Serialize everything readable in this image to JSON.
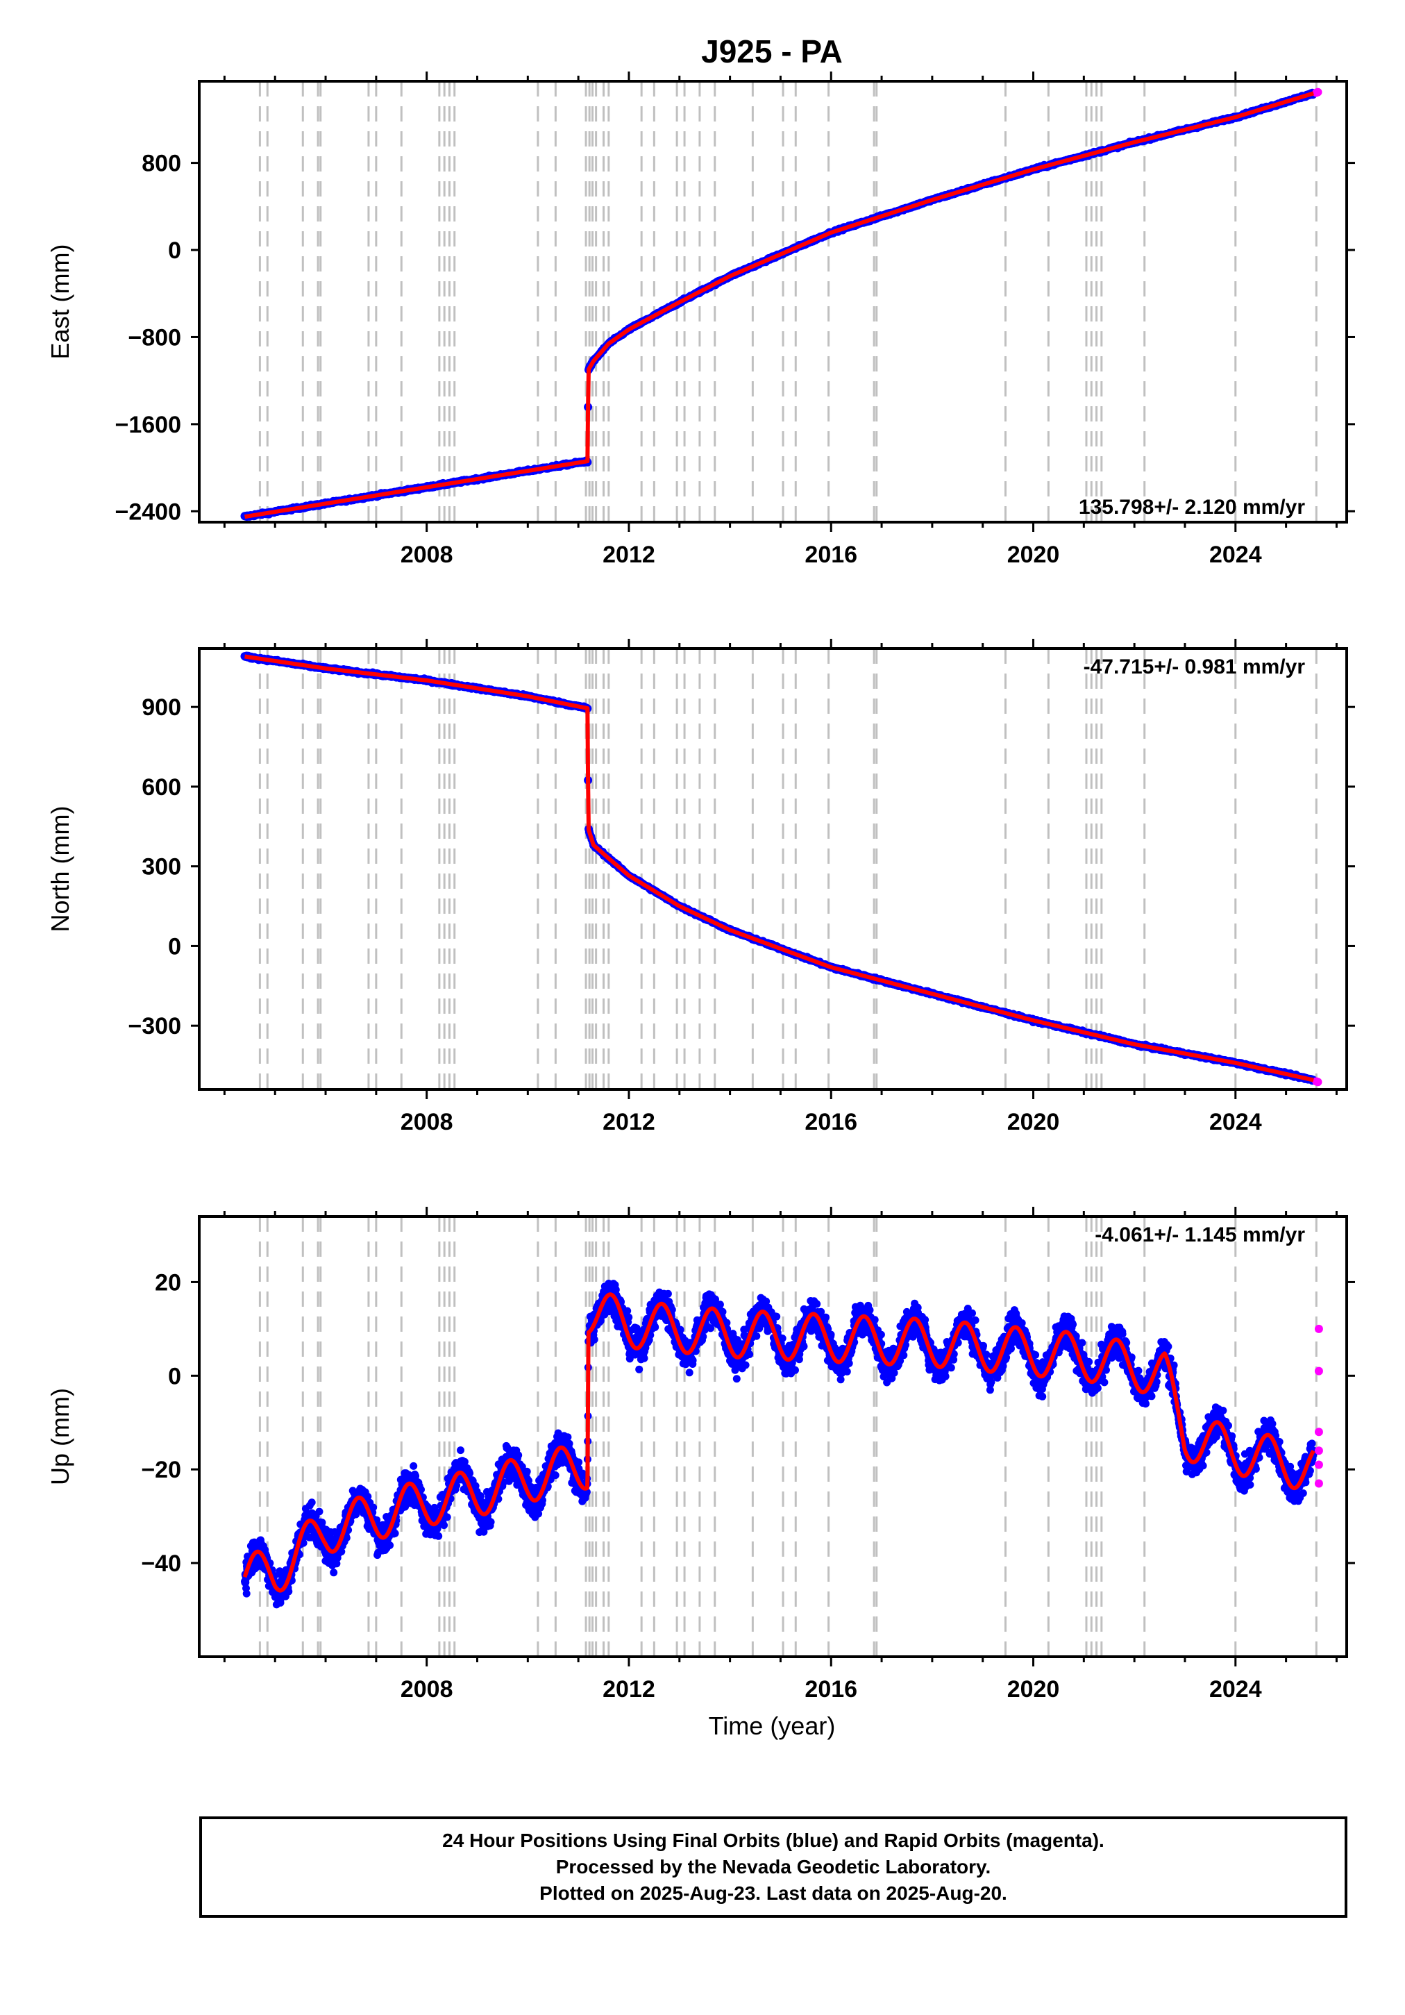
{
  "title": "J925 - PA",
  "xlabel": "Time (year)",
  "footer": {
    "line1": "24 Hour Positions Using Final Orbits (blue) and Rapid Orbits (magenta).",
    "line2": "Processed by the Nevada Geodetic Laboratory.",
    "line3": "Plotted on 2025-Aug-23. Last data on 2025-Aug-20."
  },
  "colors": {
    "final_orbits": "#0000ff",
    "rapid_orbits": "#ff00ff",
    "model": "#ff0000",
    "event_lines": "#c0c0c0"
  },
  "chart_data": [
    {
      "type": "scatter",
      "component": "east",
      "ylabel": "East (mm)",
      "xlim": [
        2003.5,
        2026.2
      ],
      "ylim": [
        -2500,
        1550
      ],
      "yticks": [
        -2400,
        -1600,
        -800,
        0,
        800
      ],
      "xticks": [
        2008,
        2012,
        2016,
        2020,
        2024
      ],
      "rate_label": "135.798+/- 2.120 mm/yr",
      "rate_position": "bottom-right",
      "final_anchors": [
        [
          2004.4,
          -2450
        ],
        [
          2011.18,
          -1940
        ],
        [
          2011.2,
          -1100
        ],
        [
          2011.3,
          -1020
        ],
        [
          2011.6,
          -860
        ],
        [
          2012,
          -730
        ],
        [
          2013,
          -480
        ],
        [
          2014,
          -240
        ],
        [
          2015,
          -40
        ],
        [
          2016,
          160
        ],
        [
          2018,
          460
        ],
        [
          2020,
          740
        ],
        [
          2022,
          990
        ],
        [
          2024,
          1220
        ],
        [
          2025.55,
          1440
        ]
      ],
      "rapid_anchors": [
        [
          2025.6,
          1445
        ],
        [
          2025.63,
          1450
        ]
      ]
    },
    {
      "type": "scatter",
      "component": "north",
      "ylabel": "North (mm)",
      "xlim": [
        2003.5,
        2026.2
      ],
      "ylim": [
        -540,
        1120
      ],
      "yticks": [
        -300,
        0,
        300,
        600,
        900
      ],
      "xticks": [
        2008,
        2012,
        2016,
        2020,
        2024
      ],
      "rate_label": "-47.715+/- 0.981 mm/yr",
      "rate_position": "top-right",
      "final_anchors": [
        [
          2004.4,
          1090
        ],
        [
          2006,
          1045
        ],
        [
          2008,
          1000
        ],
        [
          2010,
          940
        ],
        [
          2011.18,
          895
        ],
        [
          2011.2,
          440
        ],
        [
          2011.3,
          380
        ],
        [
          2011.6,
          330
        ],
        [
          2012,
          265
        ],
        [
          2013,
          150
        ],
        [
          2014,
          60
        ],
        [
          2016,
          -80
        ],
        [
          2018,
          -180
        ],
        [
          2020,
          -280
        ],
        [
          2022,
          -370
        ],
        [
          2024,
          -440
        ],
        [
          2025.55,
          -505
        ]
      ],
      "rapid_anchors": [
        [
          2025.6,
          -510
        ],
        [
          2025.63,
          -512
        ]
      ]
    },
    {
      "type": "scatter",
      "component": "up",
      "ylabel": "Up (mm)",
      "xlim": [
        2003.5,
        2026.2
      ],
      "ylim": [
        -60,
        34
      ],
      "yticks": [
        -40,
        -20,
        0,
        20
      ],
      "xticks": [
        2008,
        2012,
        2016,
        2020,
        2024
      ],
      "rate_label": "-4.061+/- 1.145 mm/yr",
      "rate_position": "top-right",
      "seasonal_amplitude_mm": 5,
      "scatter_mm": 3.5,
      "final_anchors": [
        [
          2004.4,
          -43
        ],
        [
          2005,
          -42
        ],
        [
          2006,
          -33
        ],
        [
          2007,
          -30
        ],
        [
          2008,
          -27
        ],
        [
          2009,
          -25
        ],
        [
          2010,
          -22
        ],
        [
          2011.18,
          -19
        ],
        [
          2011.2,
          14
        ],
        [
          2012,
          11
        ],
        [
          2014,
          9
        ],
        [
          2016,
          8
        ],
        [
          2018,
          7
        ],
        [
          2019,
          6
        ],
        [
          2020,
          5
        ],
        [
          2021,
          4
        ],
        [
          2022,
          2
        ],
        [
          2022.6,
          0
        ],
        [
          2023,
          -13
        ],
        [
          2024,
          -16
        ],
        [
          2025.55,
          -20
        ]
      ],
      "rapid_points": [
        [
          2025.65,
          10
        ],
        [
          2025.65,
          1
        ],
        [
          2025.65,
          -12
        ],
        [
          2025.65,
          -16
        ],
        [
          2025.65,
          -19
        ],
        [
          2025.65,
          -23
        ]
      ]
    }
  ],
  "event_years": [
    2004.7,
    2004.85,
    2005.55,
    2005.85,
    2005.9,
    2006.85,
    2007.0,
    2007.5,
    2008.25,
    2008.35,
    2008.45,
    2008.55,
    2010.2,
    2010.55,
    2011.15,
    2011.22,
    2011.28,
    2011.35,
    2011.5,
    2011.6,
    2012.25,
    2012.5,
    2012.95,
    2013.1,
    2013.4,
    2013.7,
    2014.45,
    2015.05,
    2015.3,
    2015.95,
    2016.85,
    2016.9,
    2019.45,
    2020.3,
    2021.05,
    2021.15,
    2021.25,
    2021.35,
    2022.2,
    2024.0,
    2025.6
  ]
}
